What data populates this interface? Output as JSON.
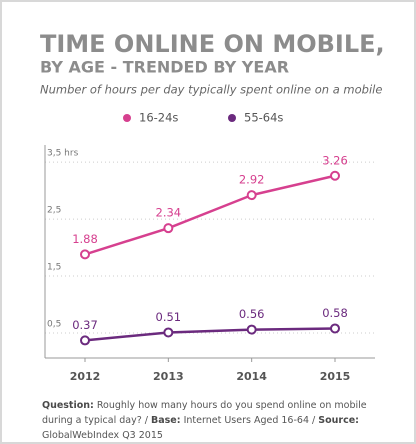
{
  "chart_data": {
    "type": "line",
    "title": "TIME ONLINE ON MOBILE,",
    "subtitle": "BY AGE - TRENDED BY YEAR",
    "description": "Number of hours per day typically spent online on a mobile",
    "categories": [
      "2012",
      "2013",
      "2014",
      "2015"
    ],
    "series": [
      {
        "name": "16-24s",
        "color": "#d6408f",
        "values": [
          1.88,
          2.34,
          2.92,
          3.26
        ]
      },
      {
        "name": "55-64s",
        "color": "#6b2a7e",
        "values": [
          0.37,
          0.51,
          0.56,
          0.58
        ]
      }
    ],
    "ylim": [
      0,
      3.8
    ],
    "yticks": [
      {
        "value": 0.5,
        "label": "0,5"
      },
      {
        "value": 1.5,
        "label": "1,5"
      },
      {
        "value": 2.5,
        "label": "2,5"
      },
      {
        "value": 3.5,
        "label": "3,5 hrs"
      }
    ],
    "grid": true,
    "footnote": [
      {
        "text": "Question:",
        "bold": true
      },
      {
        "text": "Roughly how many hours do you spend online on mobile during a typical day? /",
        "bold": false
      },
      {
        "text": "Base:",
        "bold": true
      },
      {
        "text": "Internet Users Aged 16-64 /",
        "bold": false
      },
      {
        "text": "Source:",
        "bold": true
      },
      {
        "text": "GlobalWebIndex Q3 2015",
        "bold": false
      }
    ]
  }
}
